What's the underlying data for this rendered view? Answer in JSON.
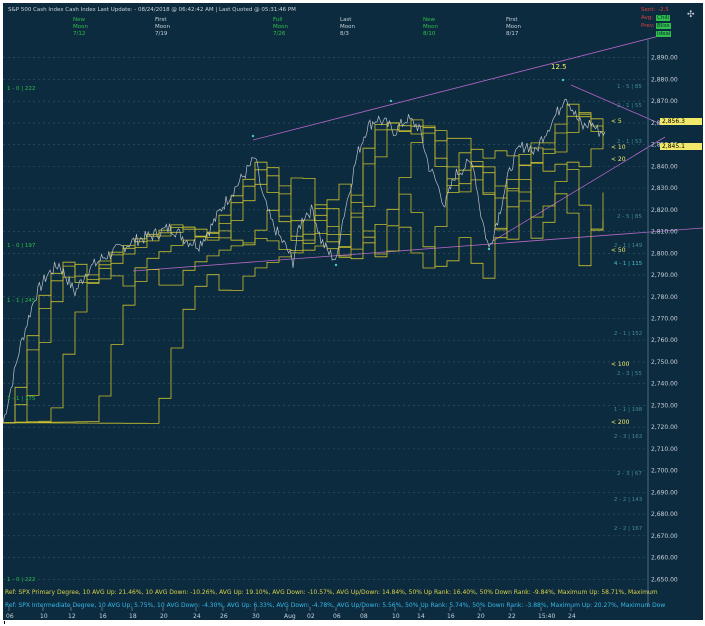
{
  "header": {
    "title": "S&P 500 Cash Index   Cash Index   Last Update:   - 08/24/2018 @ 06:42:42 AM | Last Quoted @ 05:31:46 PM",
    "moon_phases": [
      {
        "phase": "New",
        "label": "Moon",
        "date": "7/12"
      },
      {
        "phase": "First",
        "label": "Moon",
        "date": "7/19"
      },
      {
        "phase": "Full",
        "label": "Moon",
        "date": "7/26"
      },
      {
        "phase": "Last",
        "label": "Moon",
        "date": "8/3"
      },
      {
        "phase": "New",
        "label": "Moon",
        "date": "8/10"
      },
      {
        "phase": "First",
        "label": "Moon",
        "date": "8/17"
      }
    ],
    "top_right": {
      "sent_label": "Sent:",
      "sent_value": "-2.5",
      "avg_label": "Avg:",
      "avg_value": "Chill",
      "prev_label": "Prev:",
      "prev_value": "Bliss",
      "fourth_value": "Ideal"
    }
  },
  "price_tags": {
    "current": "2,856.3",
    "second": "2,845.1"
  },
  "annotations": {
    "wave_label": "12.5",
    "right_labels": [
      "1 - 5 | 85",
      "2 - 1 | 55",
      "2 - 1 | 53",
      "2 - 5 | 85",
      "2 - 1 | 149",
      "4 - 1 | 115",
      "2 - 1 | 152",
      "2 - 3 | 55",
      "1 - 1 | 198",
      "2 - 3 | 163",
      "2 - 3 | 67",
      "2 - 2 | 143",
      "2 - 2 | 167"
    ],
    "left_labels": [
      "1 - 0 | 222",
      "1 - 0 | 197",
      "1 - 1 | 245",
      "1 - 1 | 175",
      "1 - 0 | 222"
    ],
    "ma_labels": [
      "< 5",
      "< 10",
      "< 20",
      "< 50",
      "< 100",
      "< 200"
    ]
  },
  "footer": {
    "line1": "Ref: SPX Primary Degree, 10 AVG Up: 21.46%, 10 AVG Down: -10.26%, AVG Up: 19.10%, AVG Down: -10.57%, AVG Up/Down: 14.84%, 50%  Up Rank: 16.40%, 50% Down Rank: -9.84%, Maximum Up: 58.71%, Maximum",
    "line2": "Ref: SPX Intermediate Degree, 10 AVG Up: 5.75%, 10 AVG Down: -4.30%, AVG Up: 6.33%, AVG Down: -4.78%, AVG Up/Down: 5.56%, 50%  Up Rank: 5.74%, 50% Down Rank: -3.88%, Maximum Up: 20.27%, Maximum Dow"
  },
  "colors": {
    "background": "#0d2b3e",
    "price": "#b9c0c7",
    "ma": "#c9bf2f",
    "channel": "#b366c8",
    "grid": "#33566b",
    "accent_green": "#2fbf4a",
    "cyan": "#3fc6cf",
    "footer_yellow": "#d9d04a",
    "footer_cyan": "#35b8e6"
  },
  "chart_data": {
    "type": "line",
    "title": "S&P 500 Cash Index (daily bars, intraday detail)",
    "xlabel": "",
    "ylabel": "",
    "ylim": [
      2640,
      2900
    ],
    "x_tick_labels": [
      "06",
      "10",
      "12",
      "16",
      "18",
      "20",
      "24",
      "26",
      "30",
      "Aug",
      "02",
      "06",
      "08",
      "10",
      "14",
      "16",
      "20",
      "22",
      "15:40",
      "24"
    ],
    "y_ticks": [
      2650,
      2660,
      2670,
      2680,
      2690,
      2700,
      2710,
      2720,
      2730,
      2740,
      2750,
      2760,
      2770,
      2780,
      2790,
      2800,
      2810,
      2820,
      2830,
      2840,
      2850,
      2860,
      2870,
      2880,
      2890
    ],
    "y_tick_labels": [
      "2,650.00",
      "2,660.00",
      "2,670.00",
      "2,680.00",
      "2,690.00",
      "2,700.00",
      "2,710.00",
      "2,720.00",
      "2,730.00",
      "2,740.00",
      "2,750.00",
      "2,760.00",
      "2,770.00",
      "2,780.00",
      "2,790.00",
      "2,800.00",
      "2,810.00",
      "2,820.00",
      "2,830.00",
      "2,840.00",
      "2,850.00",
      "2,860.00",
      "2,870.00",
      "2,880.00",
      "2,890.00"
    ],
    "price_series": {
      "name": "SPX",
      "x": [
        0,
        8,
        16,
        24,
        32,
        44,
        56,
        72,
        84,
        100,
        116,
        132,
        148,
        168,
        184,
        196,
        208,
        220,
        232,
        244,
        252,
        260,
        268,
        276,
        284,
        290,
        296,
        302,
        310,
        318,
        326,
        334,
        338,
        346,
        354,
        364,
        374,
        382,
        392,
        404,
        416,
        426,
        434,
        442,
        452,
        462,
        470,
        478,
        486,
        492,
        496,
        500,
        508,
        516,
        524,
        532,
        540,
        548,
        556,
        562,
        568,
        574,
        580,
        588,
        596,
        602
      ],
      "values": [
        2722,
        2738,
        2755,
        2768,
        2780,
        2790,
        2795,
        2782,
        2792,
        2798,
        2802,
        2806,
        2808,
        2812,
        2806,
        2804,
        2812,
        2822,
        2830,
        2838,
        2844,
        2826,
        2815,
        2808,
        2802,
        2796,
        2812,
        2818,
        2820,
        2806,
        2800,
        2797,
        2812,
        2828,
        2845,
        2858,
        2862,
        2860,
        2856,
        2862,
        2858,
        2840,
        2832,
        2822,
        2836,
        2840,
        2842,
        2818,
        2802,
        2812,
        2818,
        2826,
        2840,
        2848,
        2850,
        2846,
        2854,
        2860,
        2866,
        2873,
        2868,
        2862,
        2858,
        2860,
        2856,
        2856
      ]
    },
    "ma_series": [
      {
        "name": "< 5",
        "values": [
          2856
        ]
      },
      {
        "name": "< 10",
        "values": [
          2845
        ]
      },
      {
        "name": "< 20",
        "values": [
          2838
        ]
      },
      {
        "name": "< 50",
        "values": [
          2800
        ]
      },
      {
        "name": "< 100",
        "values": [
          2748
        ]
      },
      {
        "name": "< 200",
        "values": [
          2715
        ]
      }
    ]
  }
}
